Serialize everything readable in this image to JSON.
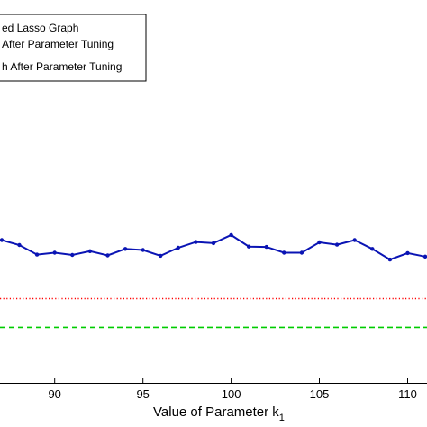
{
  "chart_data": {
    "type": "line",
    "xlabel": "Value of Parameter k",
    "xlabel_subscript": "1",
    "xlim": [
      86.9,
      111.1
    ],
    "ylim": [
      0,
      1
    ],
    "x_ticks": [
      90,
      95,
      100,
      105,
      110
    ],
    "grid": false,
    "legend_position": "top-left",
    "legend_entries": [
      "ed Lasso Graph",
      "After Parameter Tuning",
      "h After Parameter Tuning"
    ],
    "series": [
      {
        "style": "solid-with-markers",
        "color": "#0a14b4",
        "x": [
          86,
          87,
          88,
          89,
          90,
          91,
          92,
          93,
          94,
          95,
          96,
          97,
          98,
          99,
          100,
          101,
          102,
          103,
          104,
          105,
          106,
          107,
          108,
          109,
          110,
          111
        ],
        "values": [
          0.371,
          0.373,
          0.36,
          0.335,
          0.34,
          0.334,
          0.344,
          0.333,
          0.35,
          0.347,
          0.332,
          0.353,
          0.368,
          0.365,
          0.386,
          0.356,
          0.355,
          0.34,
          0.34,
          0.367,
          0.361,
          0.373,
          0.35,
          0.322,
          0.339,
          0.33
        ]
      },
      {
        "style": "dotted",
        "color": "#ff0000",
        "x": [
          86.9,
          111.1
        ],
        "values": [
          0.22,
          0.22
        ]
      },
      {
        "style": "dashed",
        "color": "#00cc00",
        "x": [
          86.9,
          111.1
        ],
        "values": [
          0.145,
          0.145
        ]
      }
    ]
  }
}
